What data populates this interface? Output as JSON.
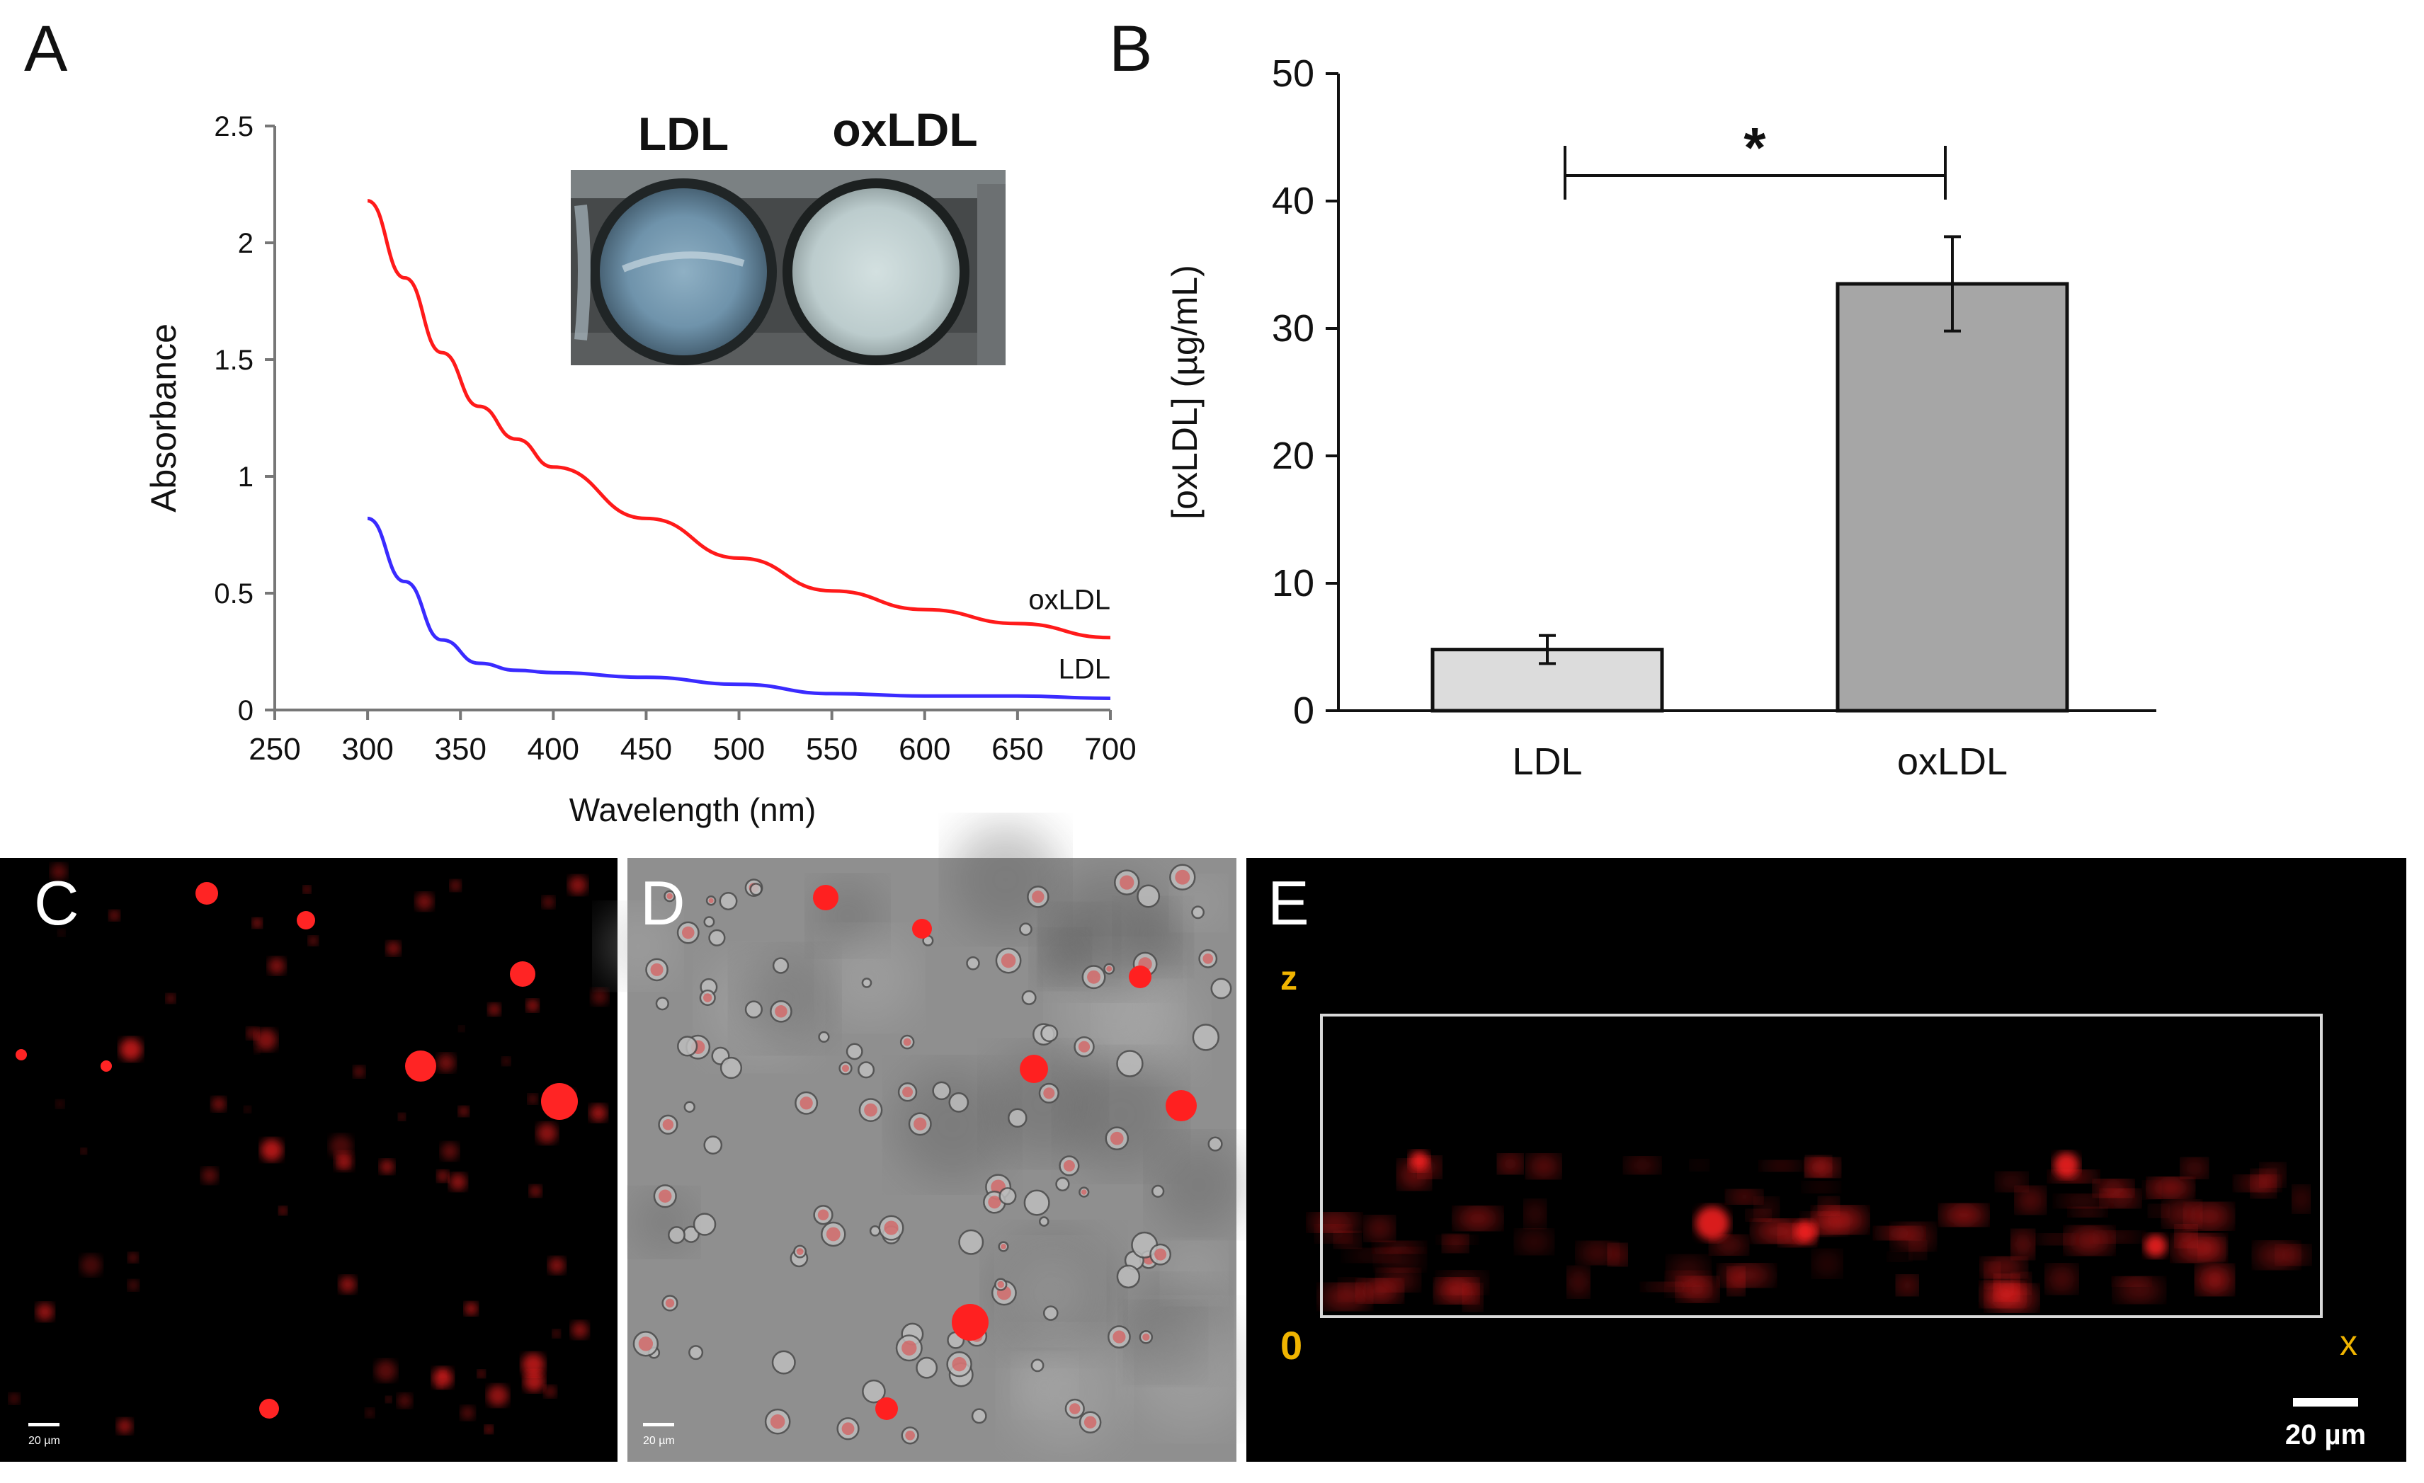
{
  "panels": {
    "A": {
      "letter": "A"
    },
    "B": {
      "letter": "B"
    },
    "C": {
      "letter": "C",
      "scalebar": "20 µm"
    },
    "D": {
      "letter": "D",
      "scalebar": "20 µm"
    },
    "E": {
      "letter": "E",
      "axis_z": "z",
      "axis_origin": "0",
      "axis_x": "x",
      "scalebar": "20 µm"
    }
  },
  "inset": {
    "label_left": "LDL",
    "label_right": "oxLDL"
  },
  "colors": {
    "oxldl_line": "#ff1a1a",
    "ldl_line": "#3a2bff",
    "bar_ldl": "#dcdcdc",
    "bar_oxldl": "#a6a6a6",
    "micro_bg": "#000000",
    "micro_red": "#ff2020",
    "axis_yellow": "#f0b400"
  },
  "chart_data": [
    {
      "type": "line",
      "title": "",
      "xlabel": "Wavelength (nm)",
      "ylabel": "Absorbance",
      "xlim": [
        250,
        700
      ],
      "ylim": [
        0,
        2.5
      ],
      "xticks": [
        "250",
        "300",
        "350",
        "400",
        "450",
        "500",
        "550",
        "600",
        "650",
        "700"
      ],
      "yticks": [
        "0",
        "0.5",
        "1",
        "1.5",
        "2",
        "2.5"
      ],
      "series": [
        {
          "name": "oxLDL",
          "x": [
            300,
            320,
            340,
            360,
            380,
            400,
            450,
            500,
            550,
            600,
            650,
            700
          ],
          "values": [
            2.18,
            1.85,
            1.53,
            1.3,
            1.16,
            1.04,
            0.82,
            0.65,
            0.51,
            0.43,
            0.37,
            0.31
          ]
        },
        {
          "name": "LDL",
          "x": [
            300,
            320,
            340,
            360,
            380,
            400,
            450,
            500,
            550,
            600,
            650,
            700
          ],
          "values": [
            0.82,
            0.55,
            0.3,
            0.2,
            0.17,
            0.16,
            0.14,
            0.11,
            0.07,
            0.06,
            0.06,
            0.05
          ]
        }
      ]
    },
    {
      "type": "bar",
      "title": "",
      "xlabel": "",
      "ylabel": "[oxLDL] (µg/mL)",
      "categories": [
        "LDL",
        "oxLDL"
      ],
      "values": [
        4.8,
        33.5
      ],
      "errors": [
        1.1,
        3.7
      ],
      "ylim": [
        0,
        50
      ],
      "yticks": [
        "0",
        "10",
        "20",
        "30",
        "40",
        "50"
      ],
      "significance": "*"
    }
  ]
}
